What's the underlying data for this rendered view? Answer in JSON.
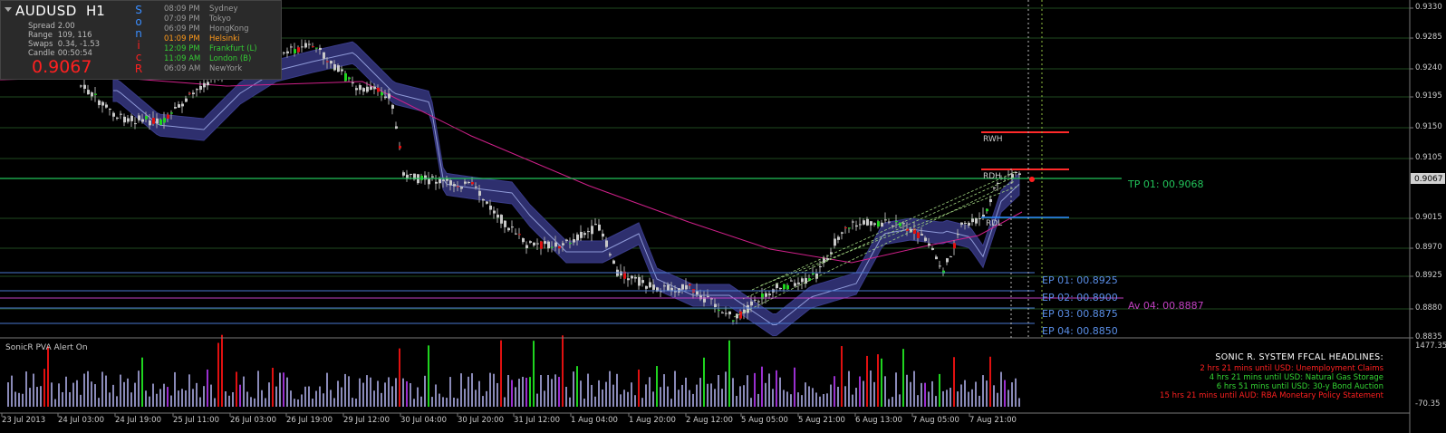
{
  "info_panel": {
    "symbol": "AUDUSD",
    "timeframe": "H1",
    "stats": [
      {
        "label": "Spread",
        "value": "2.00"
      },
      {
        "label": "Range",
        "value": "109, 116"
      },
      {
        "label": "Swaps",
        "value": "0.34, -1.53"
      },
      {
        "label": "Candle",
        "value": "00:50:54"
      }
    ],
    "price": "0.9067",
    "sonic_letters": [
      {
        "ch": "S",
        "color": "#3a8dff"
      },
      {
        "ch": "o",
        "color": "#3a8dff"
      },
      {
        "ch": "n",
        "color": "#3a8dff"
      },
      {
        "ch": "i",
        "color": "#ff2020"
      },
      {
        "ch": "c",
        "color": "#ff2020"
      },
      {
        "ch": "R",
        "color": "#ff2020"
      }
    ],
    "sessions": [
      {
        "time": "08:09 PM",
        "name": "Sydney",
        "color": "#9a9a9a"
      },
      {
        "time": "07:09 PM",
        "name": "Tokyo",
        "color": "#9a9a9a"
      },
      {
        "time": "06:09 PM",
        "name": "HongKong",
        "color": "#9a9a9a"
      },
      {
        "time": "01:09 PM",
        "name": "Helsinki",
        "color": "#ff9a1a"
      },
      {
        "time": "12:09 PM",
        "name": "Frankfurt  (L)",
        "color": "#34c934"
      },
      {
        "time": "11:09 AM",
        "name": "London  (B)",
        "color": "#34c934"
      },
      {
        "time": "06:09 AM",
        "name": "NewYork",
        "color": "#9a9a9a"
      }
    ]
  },
  "price_axis": {
    "labels": [
      "0.9330",
      "0.9285",
      "0.9240",
      "0.9195",
      "0.9150",
      "0.9105",
      "0.9015",
      "0.8970",
      "0.8925",
      "0.8880",
      "0.8835"
    ],
    "current": "0.9067"
  },
  "levels": {
    "tp": "TP 01:  00.9068",
    "rwh": "RWH",
    "rdh": "RDH",
    "rdl": "RDL",
    "ep": [
      "EP 01:  00.8925",
      "EP 02:  00.8900",
      "EP 03:  00.8875",
      "EP 04:  00.8850"
    ],
    "av": "Av 04:  00.8887"
  },
  "volume_panel": {
    "title": "SonicR PVA   Alert On",
    "axis_top": "1477.35",
    "axis_bottom": "-70.35"
  },
  "headlines": {
    "title": "SONIC R. SYSTEM  FFCAL HEADLINES:",
    "items": [
      {
        "text": "2 hrs 21 mins until USD: Unemployment Claims",
        "color": "#ff2020"
      },
      {
        "text": "4 hrs 21 mins until USD: Natural Gas Storage",
        "color": "#34d634"
      },
      {
        "text": "6 hrs 51 mins until USD: 30-y Bond Auction",
        "color": "#34d634"
      },
      {
        "text": "15 hrs 21 mins until AUD: RBA Monetary Policy Statement",
        "color": "#ff2020"
      }
    ]
  },
  "time_axis": [
    "23 Jul 2013",
    "24 Jul 03:00",
    "24 Jul 19:00",
    "25 Jul 11:00",
    "26 Jul 03:00",
    "26 Jul 19:00",
    "29 Jul 12:00",
    "30 Jul 04:00",
    "30 Jul 20:00",
    "31 Jul 12:00",
    "1 Aug 04:00",
    "1 Aug 20:00",
    "2 Aug 12:00",
    "5 Aug 05:00",
    "5 Aug 21:00",
    "6 Aug 13:00",
    "7 Aug 05:00",
    "7 Aug 21:00"
  ],
  "colors": {
    "background": "#000000",
    "bull": "#1fd41f",
    "bear": "#e01010",
    "neutral_candle": "#c8c8c8",
    "band": "#2e2f6e",
    "ema_slow": "#d0208a",
    "tp_line": "#22c35a",
    "ep_line": "#4a78d0",
    "resistance": "#ff2a2a"
  }
}
